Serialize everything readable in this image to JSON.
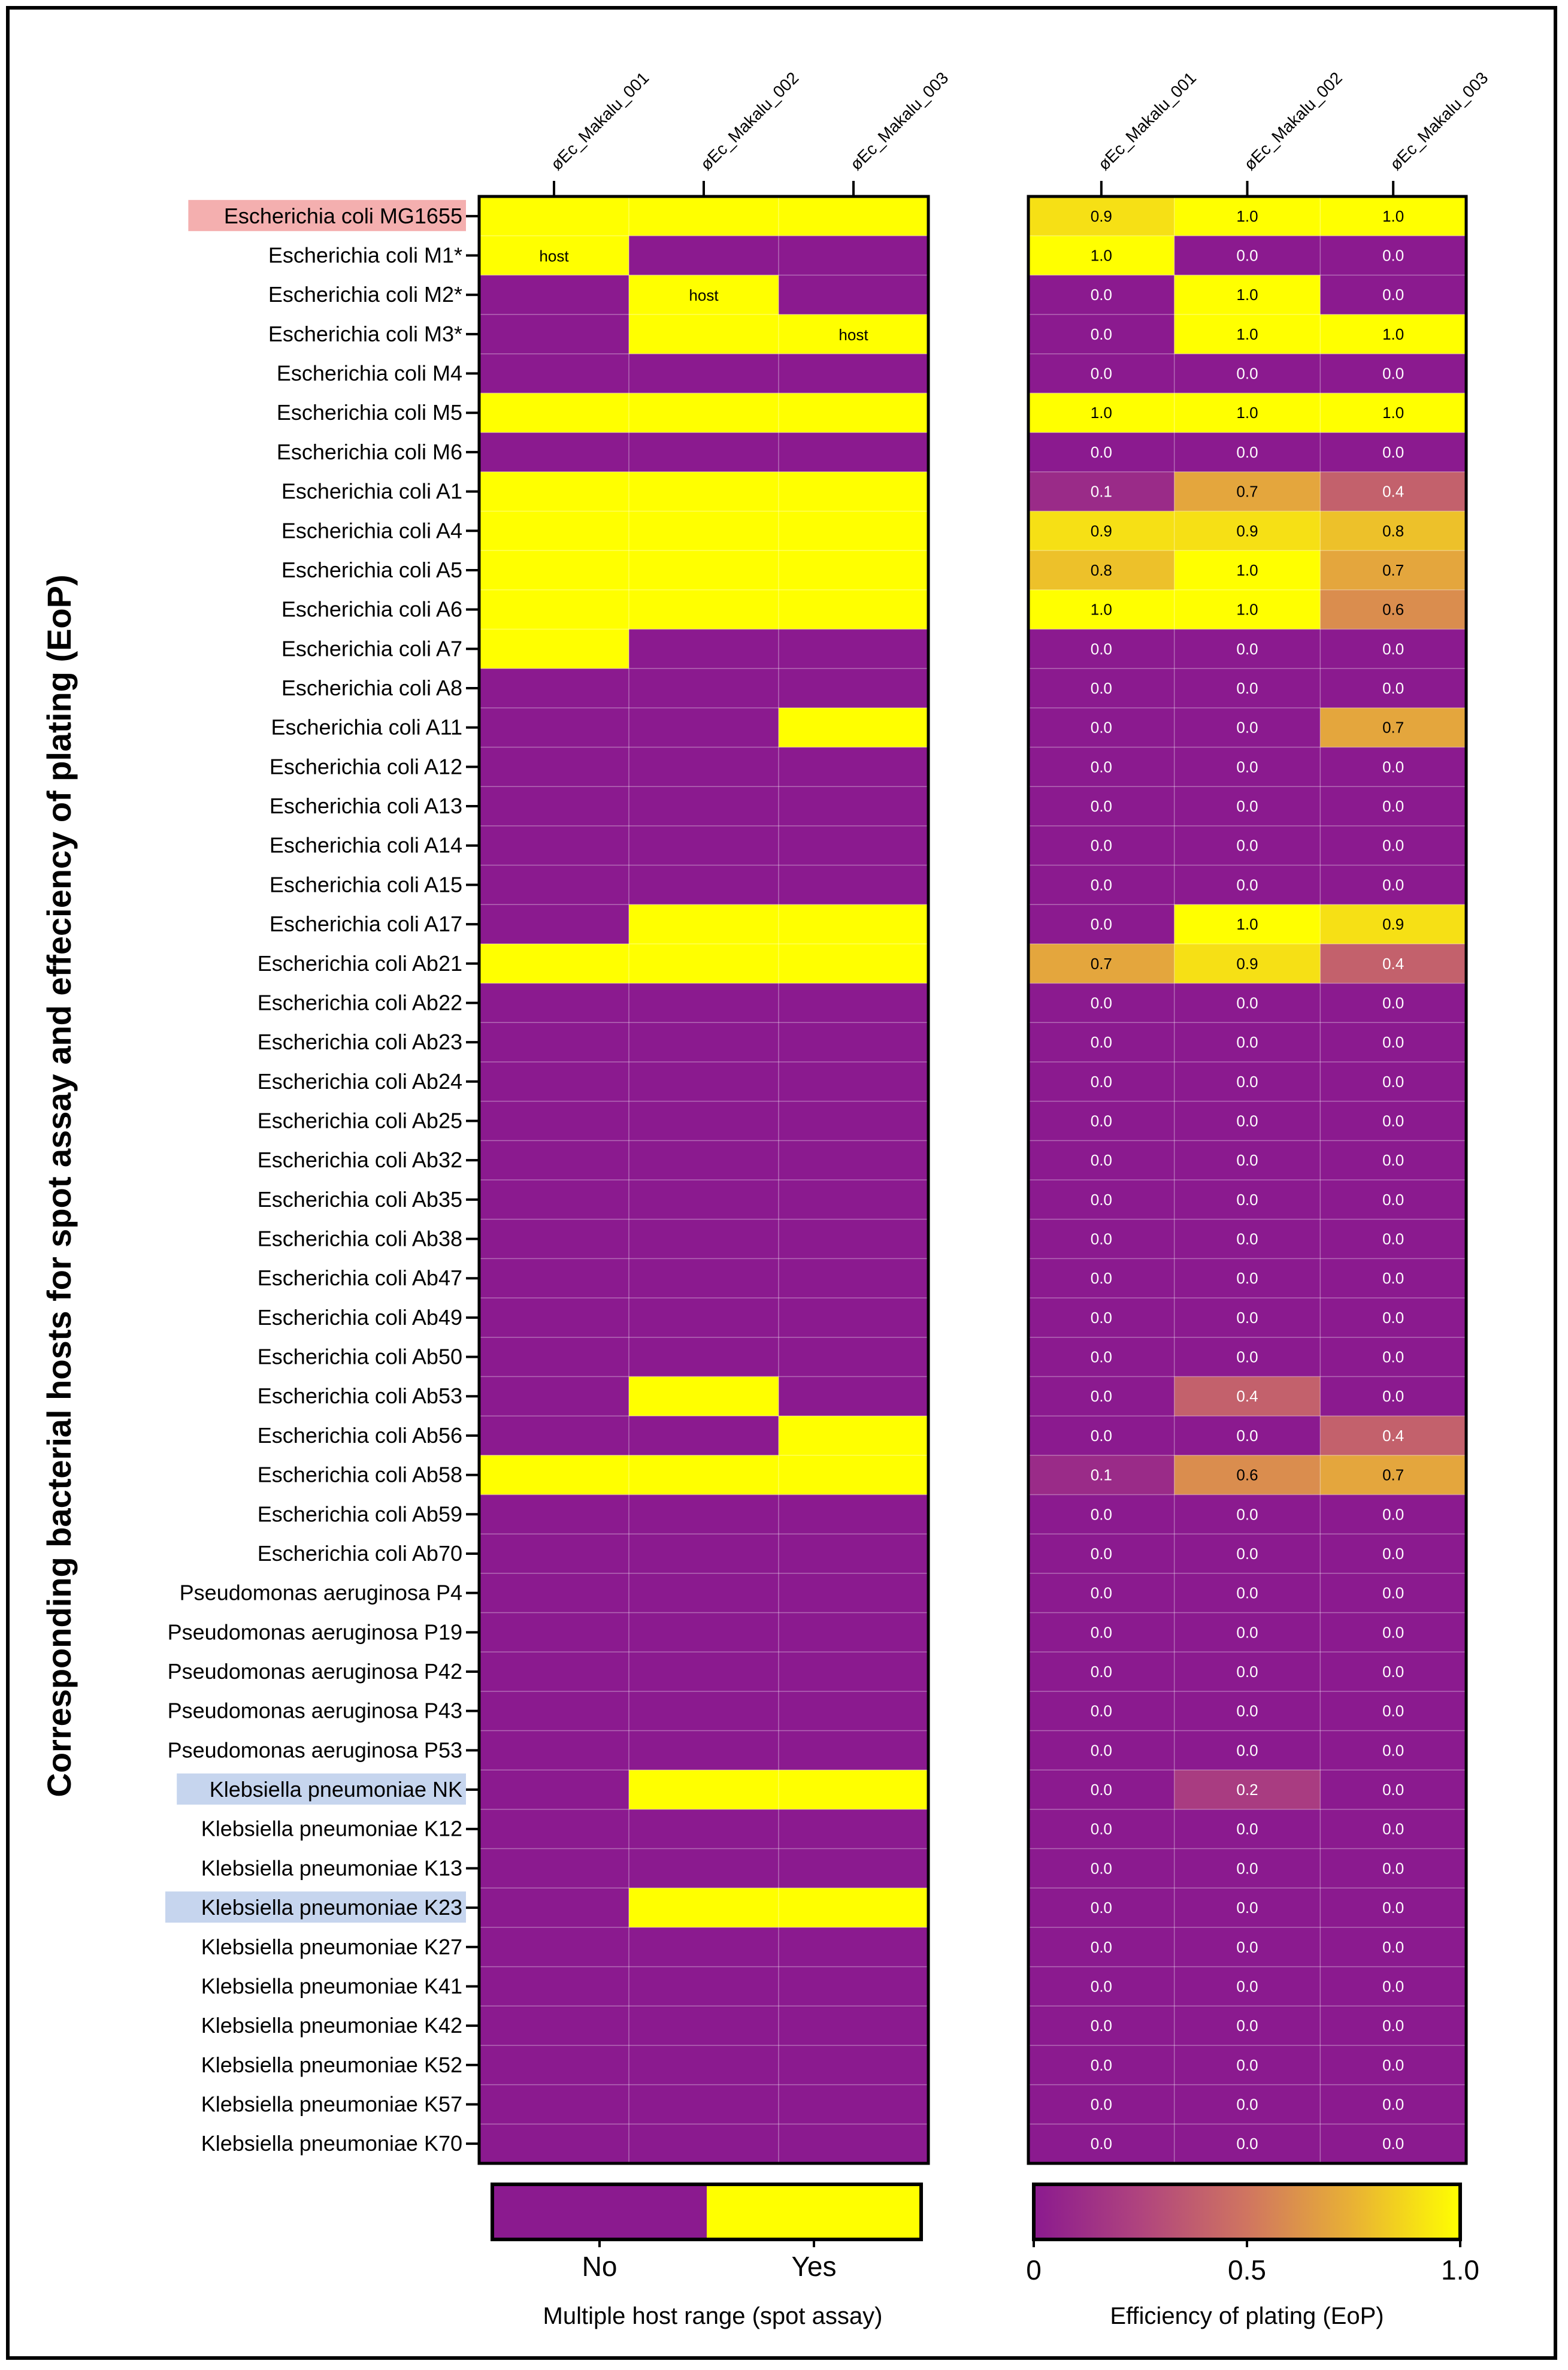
{
  "header_fragment": "(                         )",
  "y_axis_title": "Corresponding bacterial hosts for spot assay and effeciency of plating (EoP)",
  "colors": {
    "purple": "#8B1A8F",
    "yellow": "#FFFF00",
    "highlight_red": "#F4AFAF",
    "highlight_blue": "#C6D5EE"
  },
  "chart_data": [
    {
      "type": "heatmap",
      "name": "spot-assay",
      "columns": [
        "øEc_Makalu_001",
        "øEc_Makalu_002",
        "øEc_Makalu_003"
      ],
      "rows": [
        "Escherichia coli MG1655",
        "Escherichia coli M1*",
        "Escherichia coli M2*",
        "Escherichia coli M3*",
        "Escherichia coli M4",
        "Escherichia coli M5",
        "Escherichia coli M6",
        "Escherichia coli A1",
        "Escherichia coli A4",
        "Escherichia coli A5",
        "Escherichia coli A6",
        "Escherichia coli A7",
        "Escherichia coli A8",
        "Escherichia coli A11",
        "Escherichia coli A12",
        "Escherichia coli A13",
        "Escherichia coli A14",
        "Escherichia coli A15",
        "Escherichia coli A17",
        "Escherichia coli Ab21",
        "Escherichia coli Ab22",
        "Escherichia coli Ab23",
        "Escherichia coli Ab24",
        "Escherichia coli Ab25",
        "Escherichia coli Ab32",
        "Escherichia coli Ab35",
        "Escherichia coli Ab38",
        "Escherichia coli Ab47",
        "Escherichia coli Ab49",
        "Escherichia coli Ab50",
        "Escherichia coli Ab53",
        "Escherichia coli Ab56",
        "Escherichia coli Ab58",
        "Escherichia coli Ab59",
        "Escherichia coli Ab70",
        "Pseudomonas aeruginosa P4",
        "Pseudomonas aeruginosa P19",
        "Pseudomonas aeruginosa P42",
        "Pseudomonas aeruginosa P43",
        "Pseudomonas aeruginosa P53",
        "Klebsiella pneumoniae NK",
        "Klebsiella pneumoniae K12",
        "Klebsiella pneumoniae K13",
        "Klebsiella pneumoniae K23",
        "Klebsiella pneumoniae K27",
        "Klebsiella pneumoniae K41",
        "Klebsiella pneumoniae K42",
        "Klebsiella pneumoniae K52",
        "Klebsiella pneumoniae K57",
        "Klebsiella pneumoniae K70"
      ],
      "highlighted_rows": {
        "Escherichia coli MG1655": "red",
        "Klebsiella pneumoniae NK": "blue",
        "Klebsiella pneumoniae K23": "blue"
      },
      "values": [
        [
          1,
          1,
          1
        ],
        [
          1,
          0,
          0
        ],
        [
          0,
          1,
          0
        ],
        [
          0,
          1,
          1
        ],
        [
          0,
          0,
          0
        ],
        [
          1,
          1,
          1
        ],
        [
          0,
          0,
          0
        ],
        [
          1,
          1,
          1
        ],
        [
          1,
          1,
          1
        ],
        [
          1,
          1,
          1
        ],
        [
          1,
          1,
          1
        ],
        [
          1,
          0,
          0
        ],
        [
          0,
          0,
          0
        ],
        [
          0,
          0,
          1
        ],
        [
          0,
          0,
          0
        ],
        [
          0,
          0,
          0
        ],
        [
          0,
          0,
          0
        ],
        [
          0,
          0,
          0
        ],
        [
          0,
          1,
          1
        ],
        [
          1,
          1,
          1
        ],
        [
          0,
          0,
          0
        ],
        [
          0,
          0,
          0
        ],
        [
          0,
          0,
          0
        ],
        [
          0,
          0,
          0
        ],
        [
          0,
          0,
          0
        ],
        [
          0,
          0,
          0
        ],
        [
          0,
          0,
          0
        ],
        [
          0,
          0,
          0
        ],
        [
          0,
          0,
          0
        ],
        [
          0,
          0,
          0
        ],
        [
          0,
          1,
          0
        ],
        [
          0,
          0,
          1
        ],
        [
          1,
          1,
          1
        ],
        [
          0,
          0,
          0
        ],
        [
          0,
          0,
          0
        ],
        [
          0,
          0,
          0
        ],
        [
          0,
          0,
          0
        ],
        [
          0,
          0,
          0
        ],
        [
          0,
          0,
          0
        ],
        [
          0,
          0,
          0
        ],
        [
          0,
          1,
          1
        ],
        [
          0,
          0,
          0
        ],
        [
          0,
          0,
          0
        ],
        [
          0,
          1,
          1
        ],
        [
          0,
          0,
          0
        ],
        [
          0,
          0,
          0
        ],
        [
          0,
          0,
          0
        ],
        [
          0,
          0,
          0
        ],
        [
          0,
          0,
          0
        ],
        [
          0,
          0,
          0
        ]
      ],
      "annotations": [
        {
          "row": 1,
          "col": 0,
          "text": "host"
        },
        {
          "row": 2,
          "col": 1,
          "text": "host"
        },
        {
          "row": 3,
          "col": 2,
          "text": "host"
        }
      ],
      "legend": {
        "categories": [
          "No",
          "Yes"
        ],
        "title": "Multiple host range (spot assay)"
      }
    },
    {
      "type": "heatmap",
      "name": "efficiency-of-plating",
      "columns": [
        "øEc_Makalu_001",
        "øEc_Makalu_002",
        "øEc_Makalu_003"
      ],
      "values": [
        [
          0.9,
          1.0,
          1.0
        ],
        [
          1.0,
          0.0,
          0.0
        ],
        [
          0.0,
          1.0,
          0.0
        ],
        [
          0.0,
          1.0,
          1.0
        ],
        [
          0.0,
          0.0,
          0.0
        ],
        [
          1.0,
          1.0,
          1.0
        ],
        [
          0.0,
          0.0,
          0.0
        ],
        [
          0.1,
          0.7,
          0.4
        ],
        [
          0.9,
          0.9,
          0.8
        ],
        [
          0.8,
          1.0,
          0.7
        ],
        [
          1.0,
          1.0,
          0.6
        ],
        [
          0.0,
          0.0,
          0.0
        ],
        [
          0.0,
          0.0,
          0.0
        ],
        [
          0.0,
          0.0,
          0.7
        ],
        [
          0.0,
          0.0,
          0.0
        ],
        [
          0.0,
          0.0,
          0.0
        ],
        [
          0.0,
          0.0,
          0.0
        ],
        [
          0.0,
          0.0,
          0.0
        ],
        [
          0.0,
          1.0,
          0.9
        ],
        [
          0.7,
          0.9,
          0.4
        ],
        [
          0.0,
          0.0,
          0.0
        ],
        [
          0.0,
          0.0,
          0.0
        ],
        [
          0.0,
          0.0,
          0.0
        ],
        [
          0.0,
          0.0,
          0.0
        ],
        [
          0.0,
          0.0,
          0.0
        ],
        [
          0.0,
          0.0,
          0.0
        ],
        [
          0.0,
          0.0,
          0.0
        ],
        [
          0.0,
          0.0,
          0.0
        ],
        [
          0.0,
          0.0,
          0.0
        ],
        [
          0.0,
          0.0,
          0.0
        ],
        [
          0.0,
          0.4,
          0.0
        ],
        [
          0.0,
          0.0,
          0.4
        ],
        [
          0.1,
          0.6,
          0.7
        ],
        [
          0.0,
          0.0,
          0.0
        ],
        [
          0.0,
          0.0,
          0.0
        ],
        [
          0.0,
          0.0,
          0.0
        ],
        [
          0.0,
          0.0,
          0.0
        ],
        [
          0.0,
          0.0,
          0.0
        ],
        [
          0.0,
          0.0,
          0.0
        ],
        [
          0.0,
          0.0,
          0.0
        ],
        [
          0.0,
          0.2,
          0.0
        ],
        [
          0.0,
          0.0,
          0.0
        ],
        [
          0.0,
          0.0,
          0.0
        ],
        [
          0.0,
          0.0,
          0.0
        ],
        [
          0.0,
          0.0,
          0.0
        ],
        [
          0.0,
          0.0,
          0.0
        ],
        [
          0.0,
          0.0,
          0.0
        ],
        [
          0.0,
          0.0,
          0.0
        ],
        [
          0.0,
          0.0,
          0.0
        ],
        [
          0.0,
          0.0,
          0.0
        ]
      ],
      "value_format": "one decimal",
      "legend": {
        "ticks": [
          "0",
          "0.5",
          "1.0"
        ],
        "range": [
          0,
          1
        ],
        "title": "Efficiency of plating (EoP)"
      }
    }
  ]
}
